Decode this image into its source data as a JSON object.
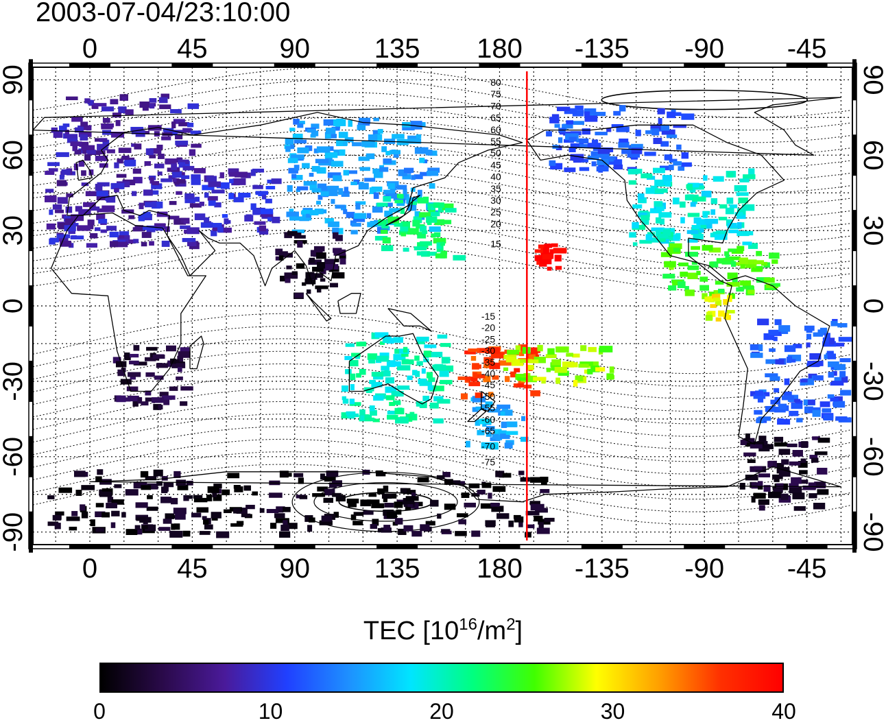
{
  "title": "2003-07-04/23:10:00",
  "map": {
    "lon_labels": [
      "0",
      "45",
      "90",
      "135",
      "180",
      "-135",
      "-90",
      "-45"
    ],
    "lat_labels": [
      "90",
      "60",
      "30",
      "0",
      "-30",
      "-60",
      "-90"
    ],
    "lon_values": [
      0,
      45,
      90,
      135,
      180,
      225,
      270,
      315
    ],
    "lat_values": [
      90,
      60,
      30,
      0,
      -30,
      -60,
      -90
    ],
    "lon_range": [
      -25,
      335
    ],
    "lat_range": [
      -95,
      95
    ],
    "grid": "dotted",
    "terminator_lon": 192,
    "terminator_color": "#ff0000",
    "contour_labels_north": [
      "80",
      "75",
      "70",
      "65",
      "60",
      "55",
      "50",
      "45",
      "40",
      "35",
      "30",
      "25",
      "20",
      "15"
    ],
    "contour_labels_south": [
      "-15",
      "-20",
      "-25",
      "-30",
      "-35",
      "-40",
      "-45",
      "-50",
      "-55",
      "-60",
      "-65",
      "-70",
      "-75"
    ]
  },
  "colorbar": {
    "label_main": "TEC  [10",
    "label_exp1": "16",
    "label_mid": "/m",
    "label_exp2": "2",
    "label_end": "]",
    "ticks": [
      "0",
      "10",
      "20",
      "30",
      "40"
    ],
    "range": [
      0,
      40
    ],
    "colormap": [
      "#000000",
      "#2a0a4a",
      "#4a1a9a",
      "#2040ff",
      "#1e90ff",
      "#00e5ff",
      "#00ff80",
      "#40ff00",
      "#ffff00",
      "#ffa000",
      "#ff3000",
      "#ff0000"
    ]
  },
  "chart_data": {
    "type": "heatmap",
    "xlabel": "",
    "ylabel": "",
    "xlim": [
      -25,
      335
    ],
    "ylim": [
      -95,
      95
    ],
    "clim": [
      0,
      40
    ],
    "regions": [
      {
        "lon": [
          -20,
          45
        ],
        "lat": [
          25,
          85
        ],
        "tec": 8
      },
      {
        "lon": [
          45,
          80
        ],
        "lat": [
          30,
          55
        ],
        "tec": 9
      },
      {
        "lon": [
          85,
          150
        ],
        "lat": [
          30,
          75
        ],
        "tec": 15
      },
      {
        "lon": [
          125,
          160
        ],
        "lat": [
          20,
          45
        ],
        "tec": 22
      },
      {
        "lon": [
          10,
          40
        ],
        "lat": [
          -40,
          -15
        ],
        "tec": 3
      },
      {
        "lon": [
          80,
          110
        ],
        "lat": [
          5,
          30
        ],
        "tec": 2
      },
      {
        "lon": [
          110,
          155
        ],
        "lat": [
          -45,
          -10
        ],
        "tec": 20
      },
      {
        "lon": [
          165,
          190
        ],
        "lat": [
          -55,
          -35
        ],
        "tec": 16
      },
      {
        "lon": [
          160,
          195
        ],
        "lat": [
          -35,
          -15
        ],
        "tec": 36
      },
      {
        "lon": [
          195,
          205
        ],
        "lat": [
          15,
          25
        ],
        "tec": 40
      },
      {
        "lon": [
          200,
          260
        ],
        "lat": [
          55,
          80
        ],
        "tec": 12
      },
      {
        "lon": [
          235,
          290
        ],
        "lat": [
          25,
          55
        ],
        "tec": 19
      },
      {
        "lon": [
          250,
          300
        ],
        "lat": [
          5,
          25
        ],
        "tec": 25
      },
      {
        "lon": [
          290,
          330
        ],
        "lat": [
          -45,
          -5
        ],
        "tec": 12
      },
      {
        "lon": [
          285,
          320
        ],
        "lat": [
          -80,
          -50
        ],
        "tec": 2
      },
      {
        "lon": [
          -20,
          200
        ],
        "lat": [
          -90,
          -65
        ],
        "tec": 1
      },
      {
        "lon": [
          180,
          230
        ],
        "lat": [
          -30,
          -15
        ],
        "tec": 27
      },
      {
        "lon": [
          270,
          280
        ],
        "lat": [
          -5,
          5
        ],
        "tec": 29
      }
    ]
  }
}
